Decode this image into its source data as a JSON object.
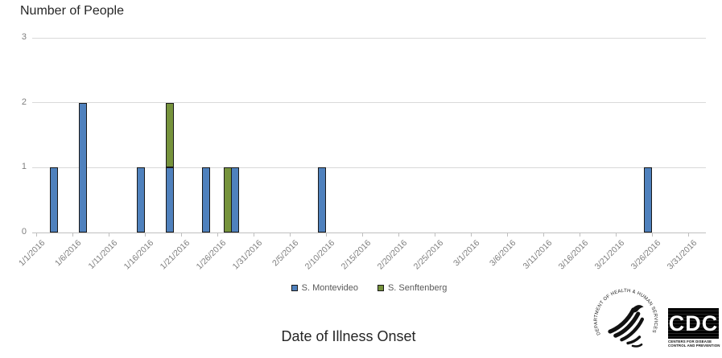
{
  "chart": {
    "title": "Number of People",
    "x_axis_title": "Date of Illness Onset"
  },
  "chart_data": {
    "type": "bar",
    "stacked": true,
    "title": "Number of People",
    "xlabel": "Date of Illness Onset",
    "ylabel": "Number of People",
    "ylim": [
      0,
      3
    ],
    "yticks": [
      0,
      1,
      2,
      3
    ],
    "grid": "horizontal",
    "legend_position": "bottom",
    "x_range": [
      "1/1/2016",
      "3/31/2016"
    ],
    "xtick_labels": [
      "1/1/2016",
      "1/6/2016",
      "1/11/2016",
      "1/16/2016",
      "1/21/2016",
      "1/26/2016",
      "1/31/2016",
      "2/5/2016",
      "2/10/2016",
      "2/15/2016",
      "2/20/2016",
      "2/25/2016",
      "3/1/2016",
      "3/6/2016",
      "3/11/2016",
      "3/16/2016",
      "3/21/2016",
      "3/26/2016",
      "3/31/2016"
    ],
    "series": [
      {
        "name": "S. Montevideo",
        "color": "#4F81BD",
        "points": [
          {
            "date": "1/3/2016",
            "count": 1
          },
          {
            "date": "1/7/2016",
            "count": 2
          },
          {
            "date": "1/15/2016",
            "count": 1
          },
          {
            "date": "1/19/2016",
            "count": 1
          },
          {
            "date": "1/24/2016",
            "count": 1
          },
          {
            "date": "1/28/2016",
            "count": 1
          },
          {
            "date": "2/9/2016",
            "count": 1
          },
          {
            "date": "3/25/2016",
            "count": 1
          }
        ]
      },
      {
        "name": "S. Senftenberg",
        "color": "#76933C",
        "points": [
          {
            "date": "1/19/2016",
            "count": 1
          },
          {
            "date": "1/27/2016",
            "count": 1
          }
        ]
      }
    ]
  },
  "colors": {
    "montevideo": "#4F81BD",
    "senftenberg": "#76933C",
    "bar_border": "#1A1A1A",
    "gridline": "#D9D9D9",
    "axis_line": "#BFBFBF",
    "tick_label": "#7F7F7F",
    "title_text": "#262626"
  },
  "logos": {
    "hhs": {
      "ring_text": "DEPARTMENT OF HEALTH & HUMAN SERVICES • USA"
    },
    "cdc": {
      "acronym": "CDC",
      "caption_line1": "CENTERS FOR DISEASE",
      "caption_line2": "CONTROL AND PREVENTION"
    }
  }
}
